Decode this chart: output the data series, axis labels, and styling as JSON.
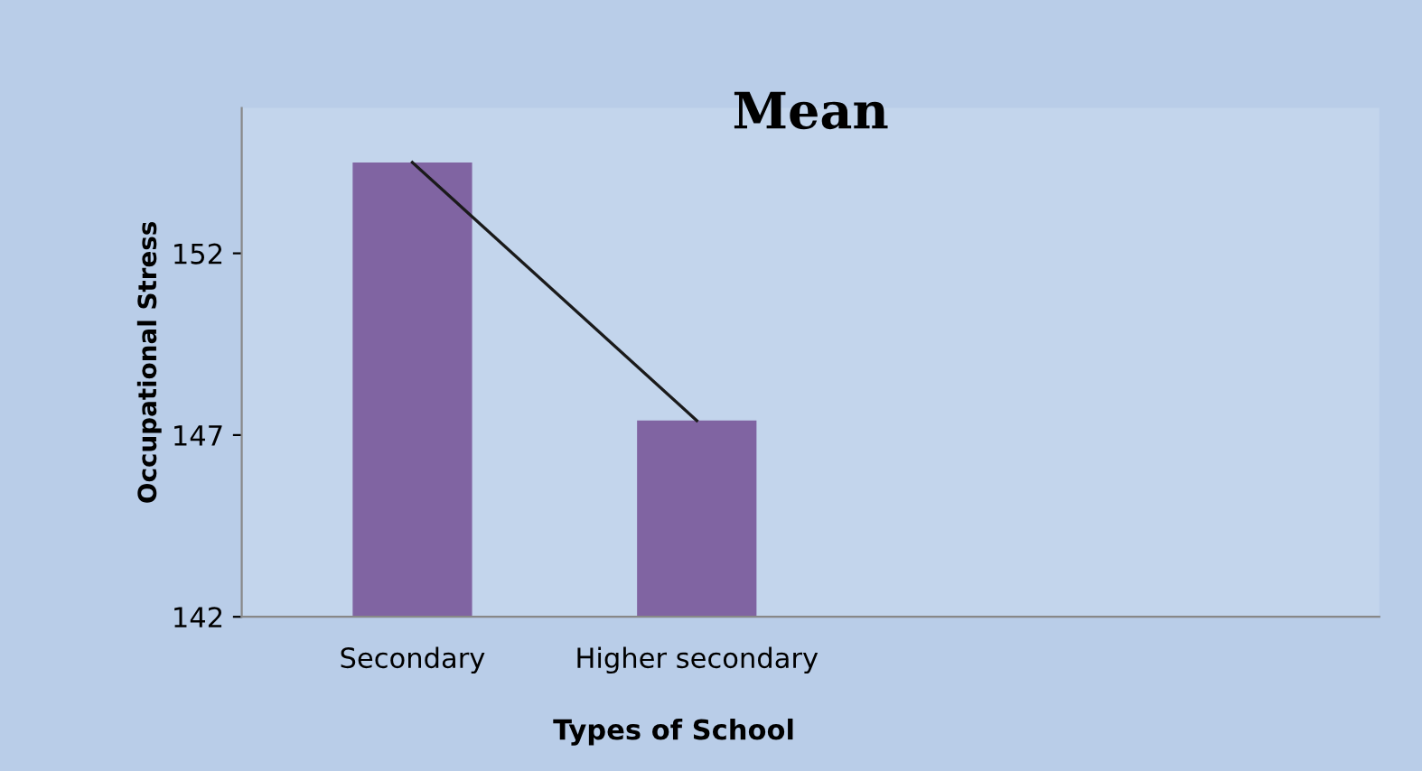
{
  "chart_data": {
    "type": "bar",
    "title": "Mean",
    "xlabel": "Types of School",
    "ylabel": "Occupational Stress",
    "categories": [
      "Secondary",
      "Higher secondary"
    ],
    "series": [
      {
        "color": "#8064a2",
        "values": [
          154.5,
          147.4
        ]
      },
      {
        "type": "line",
        "color": "#1a1a1a",
        "values": [
          154.5,
          147.4
        ]
      }
    ],
    "ylim": [
      142,
      156
    ],
    "yticks": [
      142,
      147,
      152
    ],
    "grid": false,
    "legend": false,
    "marker": "none"
  }
}
